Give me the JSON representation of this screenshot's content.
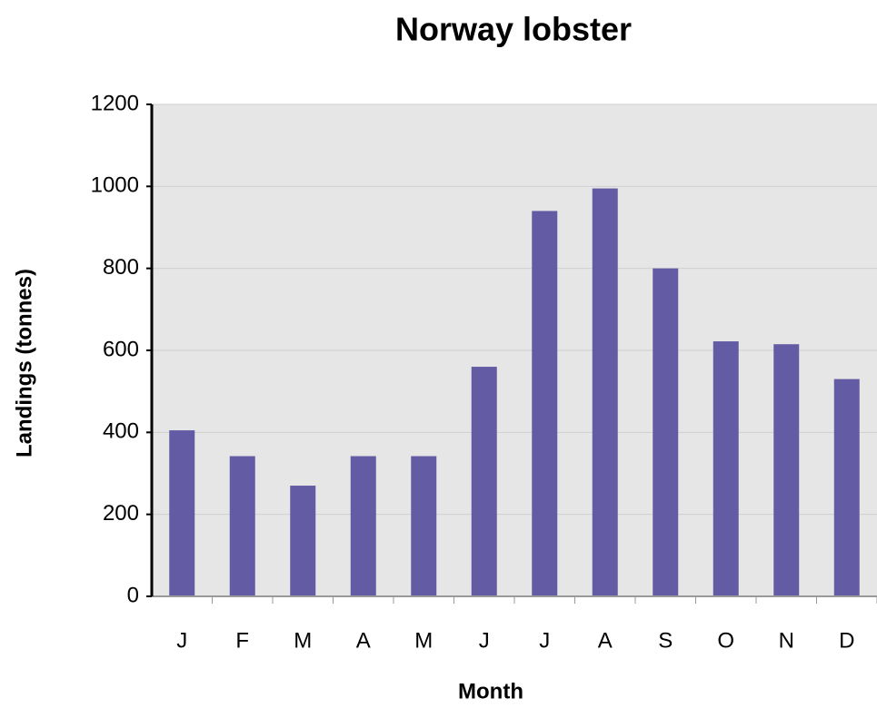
{
  "chart_data": {
    "type": "bar",
    "title": "Norway lobster",
    "x_label": "Month",
    "y_label": "Landings (tonnes)",
    "categories": [
      "J",
      "F",
      "M",
      "A",
      "M",
      "J",
      "J",
      "A",
      "S",
      "O",
      "N",
      "D"
    ],
    "values": [
      405,
      342,
      270,
      342,
      342,
      560,
      940,
      995,
      800,
      622,
      615,
      530
    ],
    "color": "#635ba3",
    "ylim": [
      0,
      1200
    ],
    "yticks": [
      0,
      200,
      400,
      600,
      800,
      1000,
      1200
    ],
    "grid": true
  }
}
